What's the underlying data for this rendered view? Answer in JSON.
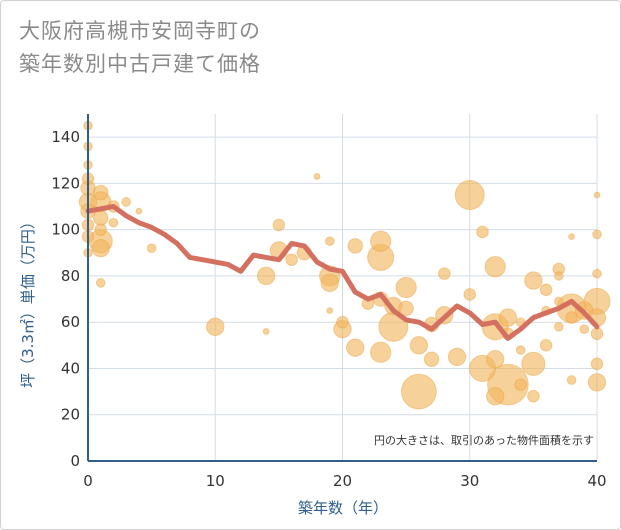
{
  "chart_data": {
    "type": "scatter",
    "title_lines": [
      "大阪府高槻市安岡寺町の",
      "築年数別中古戸建て価格"
    ],
    "xlabel": "築年数（年）",
    "ylabel": "坪（3.3㎡）単価（万円）",
    "note": "円の大きさは、取引のあった物件面積を示す",
    "xlim": [
      0,
      40
    ],
    "ylim": [
      0,
      150
    ],
    "x_ticks": [
      0,
      10,
      20,
      30,
      40
    ],
    "y_ticks": [
      0,
      20,
      40,
      60,
      80,
      100,
      120,
      140
    ],
    "grid": true,
    "colors": {
      "bubble": "#f2b45c",
      "line": "#d47060",
      "grid": "#d3dde6",
      "axis": "#2f5f8a"
    },
    "series": [
      {
        "kind": "scatter",
        "points": [
          {
            "x": 0,
            "y": 145,
            "s": 3
          },
          {
            "x": 0,
            "y": 136,
            "s": 3
          },
          {
            "x": 0,
            "y": 128,
            "s": 3
          },
          {
            "x": 0,
            "y": 122,
            "s": 4
          },
          {
            "x": 0,
            "y": 118,
            "s": 5
          },
          {
            "x": 0,
            "y": 112,
            "s": 6
          },
          {
            "x": 0,
            "y": 108,
            "s": 5
          },
          {
            "x": 0,
            "y": 102,
            "s": 4
          },
          {
            "x": 0,
            "y": 97,
            "s": 4
          },
          {
            "x": 0,
            "y": 90,
            "s": 3
          },
          {
            "x": 1,
            "y": 116,
            "s": 5
          },
          {
            "x": 1,
            "y": 112,
            "s": 7
          },
          {
            "x": 1,
            "y": 105,
            "s": 5
          },
          {
            "x": 1,
            "y": 100,
            "s": 4
          },
          {
            "x": 1,
            "y": 95,
            "s": 8
          },
          {
            "x": 1,
            "y": 92,
            "s": 6
          },
          {
            "x": 1,
            "y": 77,
            "s": 3
          },
          {
            "x": 2,
            "y": 110,
            "s": 4
          },
          {
            "x": 2,
            "y": 103,
            "s": 3
          },
          {
            "x": 3,
            "y": 112,
            "s": 3
          },
          {
            "x": 4,
            "y": 108,
            "s": 2
          },
          {
            "x": 5,
            "y": 92,
            "s": 3
          },
          {
            "x": 10,
            "y": 58,
            "s": 6
          },
          {
            "x": 14,
            "y": 80,
            "s": 6
          },
          {
            "x": 14,
            "y": 56,
            "s": 2
          },
          {
            "x": 15,
            "y": 102,
            "s": 4
          },
          {
            "x": 15,
            "y": 91,
            "s": 6
          },
          {
            "x": 16,
            "y": 87,
            "s": 4
          },
          {
            "x": 17,
            "y": 90,
            "s": 5
          },
          {
            "x": 18,
            "y": 123,
            "s": 2
          },
          {
            "x": 19,
            "y": 95,
            "s": 3
          },
          {
            "x": 19,
            "y": 80,
            "s": 7
          },
          {
            "x": 19,
            "y": 77,
            "s": 6
          },
          {
            "x": 19,
            "y": 65,
            "s": 2
          },
          {
            "x": 20,
            "y": 60,
            "s": 4
          },
          {
            "x": 20,
            "y": 57,
            "s": 6
          },
          {
            "x": 21,
            "y": 93,
            "s": 5
          },
          {
            "x": 21,
            "y": 49,
            "s": 6
          },
          {
            "x": 22,
            "y": 68,
            "s": 4
          },
          {
            "x": 23,
            "y": 95,
            "s": 7
          },
          {
            "x": 23,
            "y": 88,
            "s": 9
          },
          {
            "x": 23,
            "y": 70,
            "s": 5
          },
          {
            "x": 23,
            "y": 47,
            "s": 7
          },
          {
            "x": 24,
            "y": 58,
            "s": 10
          },
          {
            "x": 24,
            "y": 67,
            "s": 6
          },
          {
            "x": 25,
            "y": 75,
            "s": 7
          },
          {
            "x": 25,
            "y": 66,
            "s": 5
          },
          {
            "x": 26,
            "y": 50,
            "s": 6
          },
          {
            "x": 26,
            "y": 30,
            "s": 12
          },
          {
            "x": 27,
            "y": 59,
            "s": 5
          },
          {
            "x": 27,
            "y": 44,
            "s": 5
          },
          {
            "x": 28,
            "y": 81,
            "s": 4
          },
          {
            "x": 28,
            "y": 63,
            "s": 6
          },
          {
            "x": 29,
            "y": 45,
            "s": 6
          },
          {
            "x": 30,
            "y": 115,
            "s": 10
          },
          {
            "x": 30,
            "y": 72,
            "s": 4
          },
          {
            "x": 31,
            "y": 99,
            "s": 4
          },
          {
            "x": 31,
            "y": 40,
            "s": 9
          },
          {
            "x": 32,
            "y": 84,
            "s": 7
          },
          {
            "x": 32,
            "y": 58,
            "s": 9
          },
          {
            "x": 32,
            "y": 44,
            "s": 6
          },
          {
            "x": 32,
            "y": 28,
            "s": 6
          },
          {
            "x": 33,
            "y": 62,
            "s": 6
          },
          {
            "x": 33,
            "y": 33,
            "s": 14
          },
          {
            "x": 33,
            "y": 55,
            "s": 4
          },
          {
            "x": 34,
            "y": 48,
            "s": 3
          },
          {
            "x": 34,
            "y": 33,
            "s": 4
          },
          {
            "x": 34,
            "y": 60,
            "s": 3
          },
          {
            "x": 35,
            "y": 78,
            "s": 6
          },
          {
            "x": 35,
            "y": 42,
            "s": 8
          },
          {
            "x": 35,
            "y": 28,
            "s": 4
          },
          {
            "x": 36,
            "y": 74,
            "s": 4
          },
          {
            "x": 36,
            "y": 65,
            "s": 3
          },
          {
            "x": 36,
            "y": 50,
            "s": 4
          },
          {
            "x": 37,
            "y": 83,
            "s": 4
          },
          {
            "x": 37,
            "y": 80,
            "s": 3
          },
          {
            "x": 37,
            "y": 69,
            "s": 3
          },
          {
            "x": 37,
            "y": 58,
            "s": 3
          },
          {
            "x": 38,
            "y": 97,
            "s": 2
          },
          {
            "x": 38,
            "y": 66,
            "s": 10
          },
          {
            "x": 38,
            "y": 62,
            "s": 4
          },
          {
            "x": 38,
            "y": 35,
            "s": 3
          },
          {
            "x": 39,
            "y": 65,
            "s": 6
          },
          {
            "x": 39,
            "y": 57,
            "s": 3
          },
          {
            "x": 40,
            "y": 115,
            "s": 2
          },
          {
            "x": 40,
            "y": 98,
            "s": 3
          },
          {
            "x": 40,
            "y": 81,
            "s": 3
          },
          {
            "x": 40,
            "y": 69,
            "s": 9
          },
          {
            "x": 40,
            "y": 62,
            "s": 6
          },
          {
            "x": 40,
            "y": 55,
            "s": 4
          },
          {
            "x": 40,
            "y": 42,
            "s": 4
          },
          {
            "x": 40,
            "y": 34,
            "s": 6
          }
        ]
      },
      {
        "kind": "line",
        "x": [
          0,
          1,
          2,
          3,
          4,
          5,
          6,
          7,
          8,
          9,
          10,
          11,
          12,
          13,
          14,
          15,
          16,
          17,
          18,
          19,
          20,
          21,
          22,
          23,
          24,
          25,
          26,
          27,
          28,
          29,
          30,
          31,
          32,
          33,
          34,
          35,
          36,
          37,
          38,
          39,
          40
        ],
        "y": [
          108,
          109,
          110,
          106,
          103,
          101,
          98,
          94,
          88,
          87,
          86,
          85,
          82,
          89,
          88,
          87,
          94,
          93,
          86,
          83,
          82,
          73,
          70,
          72,
          65,
          61,
          60,
          57,
          62,
          67,
          64,
          59,
          60,
          53,
          57,
          62,
          64,
          66,
          69,
          64,
          58
        ]
      }
    ]
  }
}
